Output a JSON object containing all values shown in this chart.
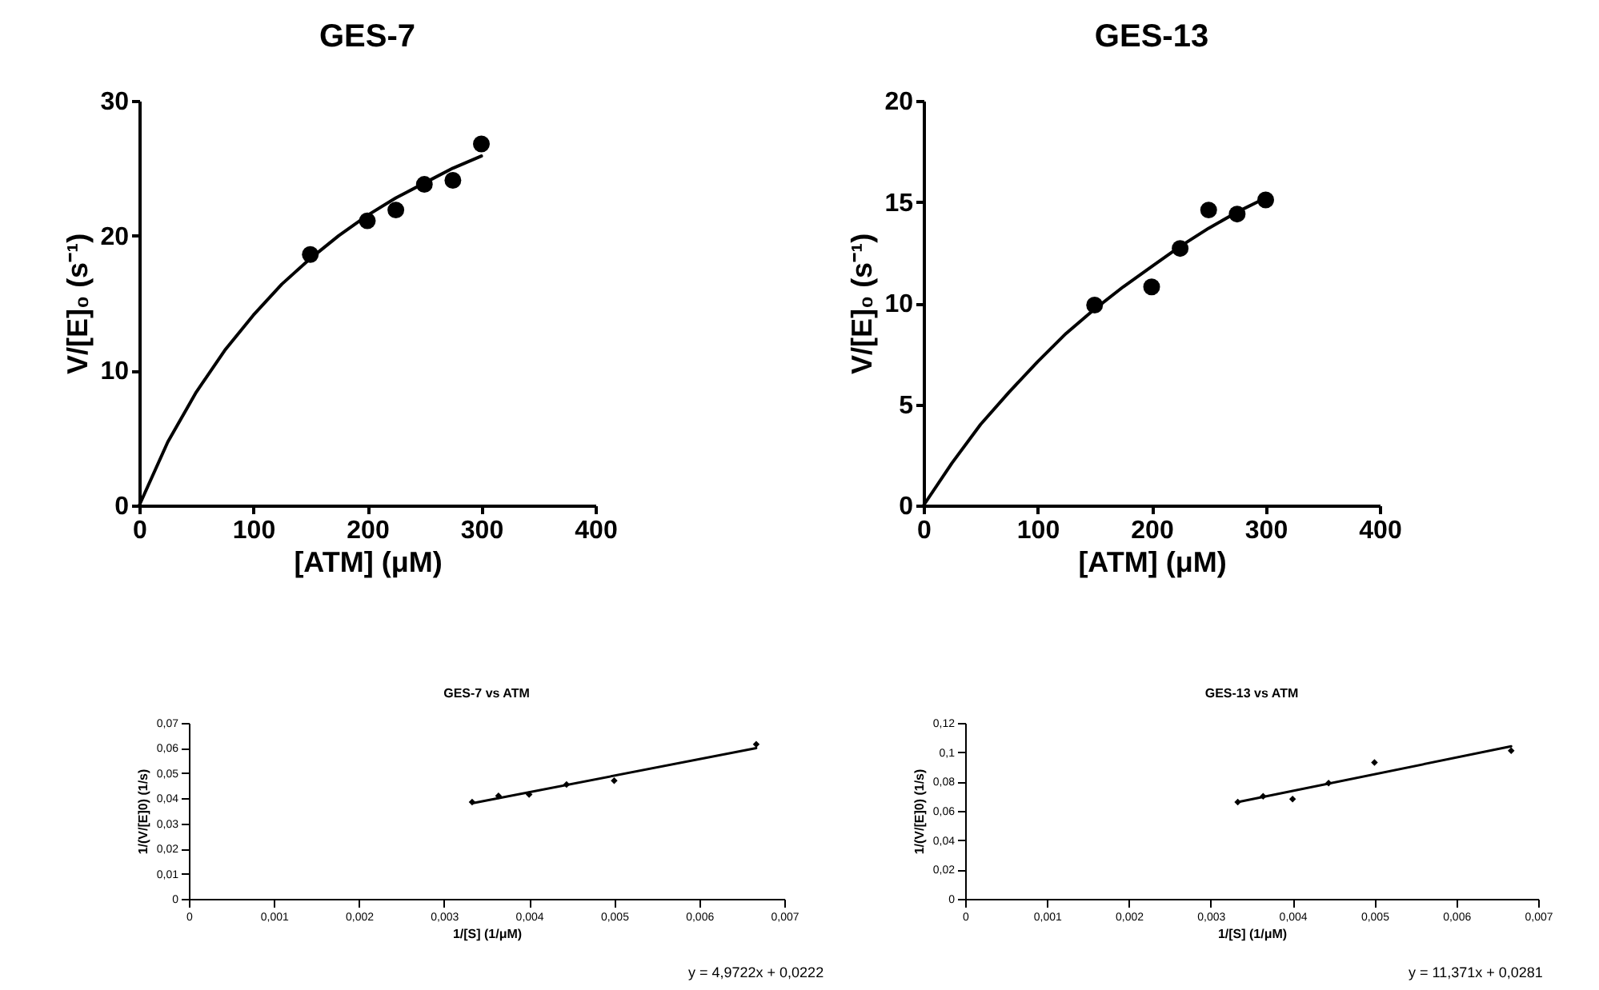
{
  "chart_data": [
    {
      "type": "scatter",
      "title": "GES-7",
      "xlabel": "[ATM] (μM)",
      "ylabel": "V/[E]₀ (s⁻¹)",
      "xlim": [
        0,
        400
      ],
      "ylim": [
        0,
        30
      ],
      "xticks": [
        0,
        100,
        200,
        300,
        400
      ],
      "yticks": [
        0,
        10,
        20,
        30
      ],
      "marker": "circle",
      "series": [
        {
          "type": "line",
          "color": "#000000",
          "marker": "none",
          "x": [
            0,
            25,
            50,
            75,
            100,
            125,
            150,
            175,
            200,
            225,
            250,
            275,
            300
          ],
          "values": [
            0,
            4.7,
            8.4,
            11.5,
            14.1,
            16.4,
            18.3,
            20.0,
            21.5,
            22.8,
            23.9,
            25.0,
            25.9
          ]
        },
        {
          "type": "scatter",
          "color": "#000000",
          "x": [
            150,
            200,
            225,
            250,
            275,
            300
          ],
          "values": [
            18.6,
            21.1,
            21.9,
            23.8,
            24.1,
            26.8
          ]
        }
      ]
    },
    {
      "type": "scatter",
      "title": "GES-13",
      "xlabel": "[ATM] (μM)",
      "ylabel": "V/[E]₀ (s⁻¹)",
      "xlim": [
        0,
        400
      ],
      "ylim": [
        0,
        20
      ],
      "xticks": [
        0,
        100,
        200,
        300,
        400
      ],
      "yticks": [
        0,
        5,
        10,
        15,
        20
      ],
      "marker": "circle",
      "series": [
        {
          "type": "line",
          "color": "#000000",
          "marker": "none",
          "x": [
            0,
            25,
            50,
            75,
            100,
            125,
            150,
            175,
            200,
            225,
            250,
            275,
            300
          ],
          "values": [
            0,
            2.1,
            4.0,
            5.6,
            7.1,
            8.5,
            9.7,
            10.8,
            11.8,
            12.8,
            13.7,
            14.5,
            15.2
          ]
        },
        {
          "type": "scatter",
          "color": "#000000",
          "x": [
            150,
            200,
            225,
            250,
            275,
            300
          ],
          "values": [
            9.9,
            10.8,
            12.7,
            14.6,
            14.4,
            15.1
          ]
        }
      ]
    },
    {
      "type": "scatter",
      "title": "GES-7 vs ATM",
      "xlabel": "1/[S] (1/μM)",
      "ylabel": "1/(V/[E]0) (1/s)",
      "annotations": [
        "y = 4,9722x + 0,0222"
      ],
      "xlim": [
        0,
        0.007
      ],
      "ylim": [
        0,
        0.07
      ],
      "marker": "diamond",
      "xticks": [
        0,
        {
          "value": 0.001,
          "label": "0,001"
        },
        {
          "value": 0.002,
          "label": "0,002"
        },
        {
          "value": 0.003,
          "label": "0,003"
        },
        {
          "value": 0.004,
          "label": "0,004"
        },
        {
          "value": 0.005,
          "label": "0,005"
        },
        {
          "value": 0.006,
          "label": "0,006"
        },
        {
          "value": 0.007,
          "label": "0,007"
        }
      ],
      "yticks": [
        0,
        {
          "value": 0.01,
          "label": "0,01"
        },
        {
          "value": 0.02,
          "label": "0,02"
        },
        {
          "value": 0.03,
          "label": "0,03"
        },
        {
          "value": 0.04,
          "label": "0,04"
        },
        {
          "value": 0.05,
          "label": "0,05"
        },
        {
          "value": 0.06,
          "label": "0,06"
        },
        {
          "value": 0.07,
          "label": "0,07"
        }
      ],
      "series": [
        {
          "type": "line",
          "color": "#000000",
          "marker": "none",
          "x": [
            0.00333,
            0.00667
          ],
          "values": [
            0.038,
            0.06
          ]
        },
        {
          "type": "scatter",
          "color": "#000000",
          "x": [
            0.00333,
            0.00364,
            0.004,
            0.00444,
            0.005,
            0.00667
          ],
          "values": [
            0.0385,
            0.041,
            0.0415,
            0.0455,
            0.047,
            0.0615
          ]
        }
      ]
    },
    {
      "type": "scatter",
      "title": "GES-13 vs ATM",
      "xlabel": "1/[S] (1/μM)",
      "ylabel": "1/(V/[E]0) (1/s)",
      "annotations": [
        "y = 11,371x + 0,0281"
      ],
      "xlim": [
        0,
        0.007
      ],
      "ylim": [
        0,
        0.12
      ],
      "marker": "diamond",
      "xticks": [
        0,
        {
          "value": 0.001,
          "label": "0,001"
        },
        {
          "value": 0.002,
          "label": "0,002"
        },
        {
          "value": 0.003,
          "label": "0,003"
        },
        {
          "value": 0.004,
          "label": "0,004"
        },
        {
          "value": 0.005,
          "label": "0,005"
        },
        {
          "value": 0.006,
          "label": "0,006"
        },
        {
          "value": 0.007,
          "label": "0,007"
        }
      ],
      "yticks": [
        0,
        {
          "value": 0.02,
          "label": "0,02"
        },
        {
          "value": 0.04,
          "label": "0,04"
        },
        {
          "value": 0.06,
          "label": "0,06"
        },
        {
          "value": 0.08,
          "label": "0,08"
        },
        {
          "value": 0.1,
          "label": "0,1"
        },
        {
          "value": 0.12,
          "label": "0,12"
        }
      ],
      "series": [
        {
          "type": "line",
          "color": "#000000",
          "marker": "none",
          "x": [
            0.00333,
            0.00667
          ],
          "values": [
            0.066,
            0.104
          ]
        },
        {
          "type": "scatter",
          "color": "#000000",
          "x": [
            0.00333,
            0.00364,
            0.004,
            0.00444,
            0.005,
            0.00667
          ],
          "values": [
            0.066,
            0.07,
            0.068,
            0.079,
            0.093,
            0.101
          ]
        }
      ]
    }
  ]
}
